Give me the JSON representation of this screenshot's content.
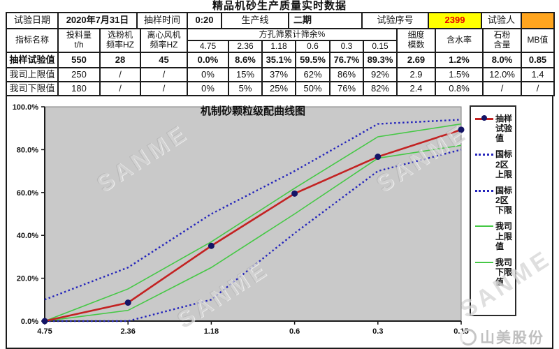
{
  "page": {
    "title": "精品机砂生产质量实时数据"
  },
  "info_row": {
    "test_date_label": "试验日期",
    "test_date_value": "2020年7月31日",
    "sample_time_label": "抽样时间",
    "sample_time_value": "0:20",
    "production_line_label": "生产线",
    "production_line_value": "二期",
    "test_serial_label": "试验序号",
    "test_serial_value": "2399",
    "tester_label": "试验人",
    "tester_value": ""
  },
  "table": {
    "indicator_header": "指标名称",
    "left_group_headers": [
      [
        "投料量",
        "t/h"
      ],
      [
        "选粉机",
        "频率HZ"
      ],
      [
        "离心风机",
        "频率HZ"
      ]
    ],
    "sieve_group_label": "方孔筛累计筛余%",
    "sieve_sizes": [
      "4.75",
      "2.36",
      "1.18",
      "0.6",
      "0.3",
      "0.15"
    ],
    "right_group_headers": [
      [
        "细度",
        "模数"
      ],
      [
        "含水率"
      ],
      [
        "石粉",
        "含量"
      ],
      [
        "MB值"
      ]
    ],
    "rows": [
      {
        "label": "抽样试验值",
        "bold": true,
        "values": [
          "550",
          "28",
          "45",
          "0.0%",
          "8.6%",
          "35.1%",
          "59.5%",
          "76.7%",
          "89.3%",
          "2.69",
          "1.2%",
          "8.0%",
          "0.85"
        ]
      },
      {
        "label": "我司上限值",
        "bold": false,
        "values": [
          "250",
          "/",
          "/",
          "0%",
          "15%",
          "37%",
          "62%",
          "86%",
          "92%",
          "2.9",
          "1.5%",
          "12.0%",
          "1.4"
        ]
      },
      {
        "label": "我司下限值",
        "bold": false,
        "values": [
          "180",
          "/",
          "/",
          "0%",
          "5%",
          "25%",
          "50%",
          "76%",
          "82%",
          "2.4",
          "0.8%",
          "/",
          "/"
        ]
      }
    ]
  },
  "chart_data": {
    "type": "line",
    "title": "机制砂颗粒级配曲线图",
    "x_categories": [
      "4.75",
      "2.36",
      "1.18",
      "0.6",
      "0.3",
      "0.15"
    ],
    "x_axis_note": "sieve size mm, descending left to right",
    "y_tick_labels": [
      "100.0%",
      "80.0%",
      "60.0%",
      "40.0%",
      "20.0%",
      "0.0%"
    ],
    "ylim": [
      0,
      100
    ],
    "grid": false,
    "plot_bg": "#c9c9c9",
    "legend_position": "right",
    "series": [
      {
        "name": "抽样试验值",
        "legend_label": "抽样\n试验\n值",
        "style": "solid-marker",
        "color": "#c32222",
        "marker_color": "#141466",
        "values": [
          0.0,
          8.6,
          35.1,
          59.5,
          76.7,
          89.3
        ]
      },
      {
        "name": "国标2区上限",
        "legend_label": "国标\n2区\n上限",
        "style": "dotted",
        "color": "#2424bb",
        "values": [
          10,
          25,
          50,
          70,
          92,
          94
        ]
      },
      {
        "name": "国标2区下限",
        "legend_label": "国标\n2区\n下限",
        "style": "dotted",
        "color": "#2424bb",
        "values": [
          0,
          0,
          10,
          41,
          70,
          80
        ]
      },
      {
        "name": "我司上限值",
        "legend_label": "我司\n上限\n值",
        "style": "solid",
        "color": "#46c846",
        "values": [
          0,
          15,
          37,
          62,
          86,
          92
        ]
      },
      {
        "name": "我司下限值",
        "legend_label": "我司\n下限\n值",
        "style": "solid",
        "color": "#46c846",
        "values": [
          0,
          5,
          25,
          50,
          76,
          82
        ]
      }
    ],
    "watermark": "SANME"
  },
  "footer": {
    "brand": "山美股份"
  }
}
